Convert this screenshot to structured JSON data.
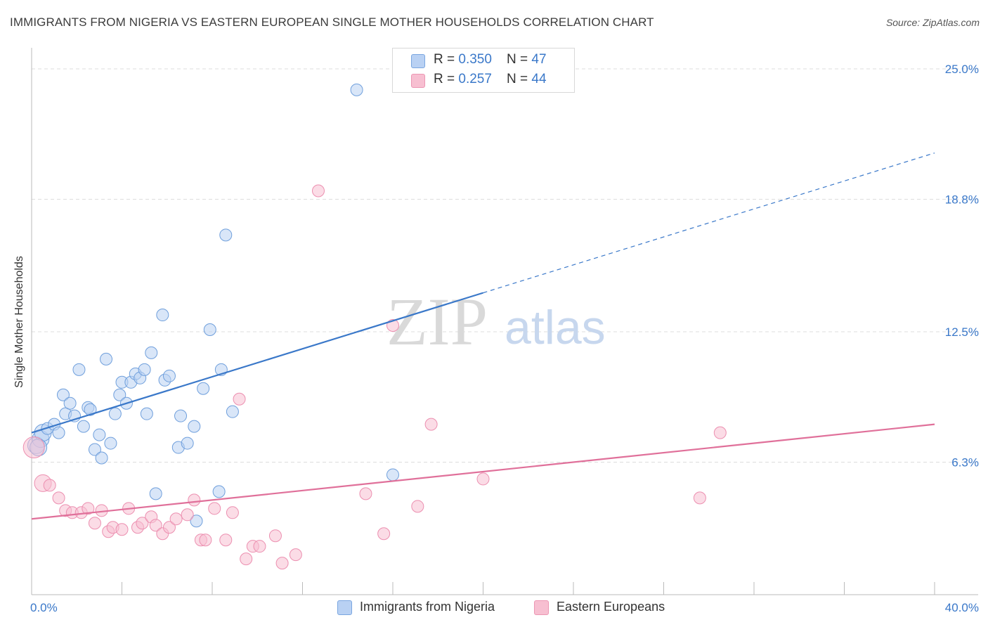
{
  "title": "IMMIGRANTS FROM NIGERIA VS EASTERN EUROPEAN SINGLE MOTHER HOUSEHOLDS CORRELATION CHART",
  "source": "Source: ZipAtlas.com",
  "watermark": {
    "zip": "ZIP",
    "atlas": "atlas"
  },
  "colors": {
    "blue": "#3a78c9",
    "blue_fill": "#b9d1f3",
    "pink": "#e0709a",
    "pink_fill": "#f7bfd1",
    "grid": "#dddddd"
  },
  "legend_top": [
    {
      "r_label": "R = ",
      "r_value": "0.350",
      "n_label": "N = ",
      "n_value": "47"
    },
    {
      "r_label": "R = ",
      "r_value": "0.257",
      "n_label": "N = ",
      "n_value": "44"
    }
  ],
  "legend_bottom": [
    "Immigrants from Nigeria",
    "Eastern Europeans"
  ],
  "chart_data": {
    "type": "scatter",
    "title": "IMMIGRANTS FROM NIGERIA VS EASTERN EUROPEAN SINGLE MOTHER HOUSEHOLDS CORRELATION CHART",
    "xlabel": "",
    "ylabel": "Single Mother Households",
    "xlim": [
      0,
      40
    ],
    "ylim": [
      0,
      25.6
    ],
    "x_tick_labels": [
      "0.0%",
      "40.0%"
    ],
    "y_ticks": [
      6.3,
      12.5,
      18.8,
      25.0
    ],
    "y_tick_labels": [
      "6.3%",
      "12.5%",
      "18.8%",
      "25.0%"
    ],
    "grid": true,
    "series": [
      {
        "name": "Immigrants from Nigeria",
        "color": "#3a78c9",
        "points": [
          [
            0.2,
            7.1
          ],
          [
            0.4,
            7.4
          ],
          [
            0.5,
            7.7
          ],
          [
            0.7,
            7.9
          ],
          [
            1.0,
            8.1
          ],
          [
            1.2,
            7.7
          ],
          [
            1.4,
            9.5
          ],
          [
            1.5,
            8.6
          ],
          [
            1.7,
            9.1
          ],
          [
            1.9,
            8.5
          ],
          [
            2.1,
            10.7
          ],
          [
            2.3,
            8.0
          ],
          [
            2.5,
            8.9
          ],
          [
            2.6,
            8.8
          ],
          [
            2.8,
            6.9
          ],
          [
            3.0,
            7.6
          ],
          [
            3.1,
            6.5
          ],
          [
            3.3,
            11.2
          ],
          [
            3.5,
            7.2
          ],
          [
            3.7,
            8.6
          ],
          [
            3.9,
            9.5
          ],
          [
            4.0,
            10.1
          ],
          [
            4.2,
            9.1
          ],
          [
            4.4,
            10.1
          ],
          [
            4.6,
            10.5
          ],
          [
            4.8,
            10.3
          ],
          [
            5.0,
            10.7
          ],
          [
            5.1,
            8.6
          ],
          [
            5.3,
            11.5
          ],
          [
            5.5,
            4.8
          ],
          [
            5.8,
            13.3
          ],
          [
            5.9,
            10.2
          ],
          [
            6.1,
            10.4
          ],
          [
            6.5,
            7.0
          ],
          [
            6.6,
            8.5
          ],
          [
            6.9,
            7.2
          ],
          [
            7.2,
            8.0
          ],
          [
            7.3,
            3.5
          ],
          [
            7.6,
            9.8
          ],
          [
            7.9,
            12.6
          ],
          [
            8.3,
            4.9
          ],
          [
            8.4,
            10.7
          ],
          [
            8.6,
            17.1
          ],
          [
            8.9,
            8.7
          ],
          [
            14.4,
            24.0
          ],
          [
            16.0,
            5.7
          ],
          [
            0.3,
            7.0
          ]
        ],
        "trend": {
          "x0": 0,
          "y0": 7.7,
          "x_solid_end": 20,
          "x1": 40,
          "y1": 21.0
        }
      },
      {
        "name": "Eastern Europeans",
        "color": "#e0709a",
        "points": [
          [
            0.1,
            7.0
          ],
          [
            0.5,
            5.3
          ],
          [
            0.8,
            5.2
          ],
          [
            1.2,
            4.6
          ],
          [
            1.5,
            4.0
          ],
          [
            1.8,
            3.9
          ],
          [
            2.2,
            3.9
          ],
          [
            2.5,
            4.1
          ],
          [
            2.8,
            3.4
          ],
          [
            3.1,
            4.0
          ],
          [
            3.4,
            3.0
          ],
          [
            3.6,
            3.2
          ],
          [
            4.0,
            3.1
          ],
          [
            4.3,
            4.1
          ],
          [
            4.7,
            3.2
          ],
          [
            4.9,
            3.4
          ],
          [
            5.3,
            3.7
          ],
          [
            5.5,
            3.3
          ],
          [
            5.8,
            2.9
          ],
          [
            6.1,
            3.2
          ],
          [
            6.4,
            3.6
          ],
          [
            6.9,
            3.8
          ],
          [
            7.2,
            4.5
          ],
          [
            7.5,
            2.6
          ],
          [
            7.7,
            2.6
          ],
          [
            8.1,
            4.1
          ],
          [
            8.6,
            2.6
          ],
          [
            8.9,
            3.9
          ],
          [
            9.2,
            9.3
          ],
          [
            9.5,
            1.7
          ],
          [
            9.8,
            2.3
          ],
          [
            10.1,
            2.3
          ],
          [
            10.8,
            2.8
          ],
          [
            11.1,
            1.5
          ],
          [
            11.7,
            1.9
          ],
          [
            12.7,
            19.2
          ],
          [
            14.8,
            4.8
          ],
          [
            15.6,
            2.9
          ],
          [
            16.0,
            12.8
          ],
          [
            17.1,
            4.2
          ],
          [
            17.7,
            8.1
          ],
          [
            20.0,
            5.5
          ],
          [
            29.6,
            4.6
          ],
          [
            30.5,
            7.7
          ]
        ],
        "trend": {
          "x0": 0,
          "y0": 3.6,
          "x_solid_end": 40,
          "x1": 40,
          "y1": 8.1
        }
      }
    ]
  }
}
